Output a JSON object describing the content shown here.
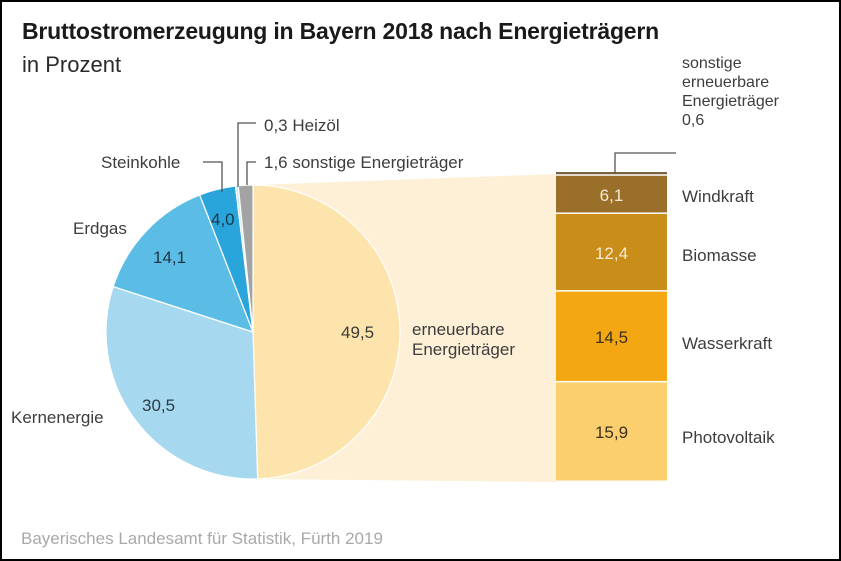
{
  "header": {
    "title": "Bruttostromerzeugung in Bayern 2018 nach Energieträgern",
    "subtitle": "in Prozent"
  },
  "footer": {
    "source": "Bayerisches Landesamt für Statistik, Fürth 2019"
  },
  "chart_data": {
    "type": "pie",
    "title": "Bruttostromerzeugung in Bayern 2018 nach Energieträgern",
    "subtitle": "in Prozent",
    "unit": "%",
    "pie": {
      "slices": [
        {
          "label": "erneuerbare Energieträger",
          "value": 49.5,
          "value_label": "49,5",
          "color": "#fde4ac"
        },
        {
          "label": "Kernenergie",
          "value": 30.5,
          "value_label": "30,5",
          "color": "#a6d8ef"
        },
        {
          "label": "Erdgas",
          "value": 14.1,
          "value_label": "14,1",
          "color": "#5bbde6"
        },
        {
          "label": "Steinkohle",
          "value": 4.0,
          "value_label": "4,0",
          "color": "#2aa5dc"
        },
        {
          "label": "Heizöl",
          "value": 0.3,
          "value_label": "0,3",
          "color": "#c9e8f5"
        },
        {
          "label": "sonstige Energieträger",
          "value": 1.6,
          "value_label": "1,6",
          "color": "#a3a3a3"
        }
      ],
      "callout_labels": {
        "heizoel": "0,3 Heizöl",
        "sonstige": "1,6 sonstige Energieträger",
        "steinkohle": "Steinkohle"
      },
      "expansion_label": [
        "erneuerbare",
        "Energieträger"
      ],
      "expansion_color": "#fef0d6"
    },
    "breakdown_bar": {
      "parent": "erneuerbare Energieträger",
      "segments": [
        {
          "label": "sonstige erneuerbare Energieträger",
          "value": 0.6,
          "value_label": "0,6",
          "color": "#7a6440"
        },
        {
          "label": "Windkraft",
          "value": 6.1,
          "value_label": "6,1",
          "color": "#9a6f2a"
        },
        {
          "label": "Biomasse",
          "value": 12.4,
          "value_label": "12,4",
          "color": "#c98d1a"
        },
        {
          "label": "Wasserkraft",
          "value": 14.5,
          "value_label": "14,5",
          "color": "#f3a712"
        },
        {
          "label": "Photovoltaik",
          "value": 15.9,
          "value_label": "15,9",
          "color": "#fccf6e"
        }
      ],
      "other_label_lines": [
        "sonstige",
        "erneuerbare",
        "Energieträger",
        "0,6"
      ]
    }
  }
}
